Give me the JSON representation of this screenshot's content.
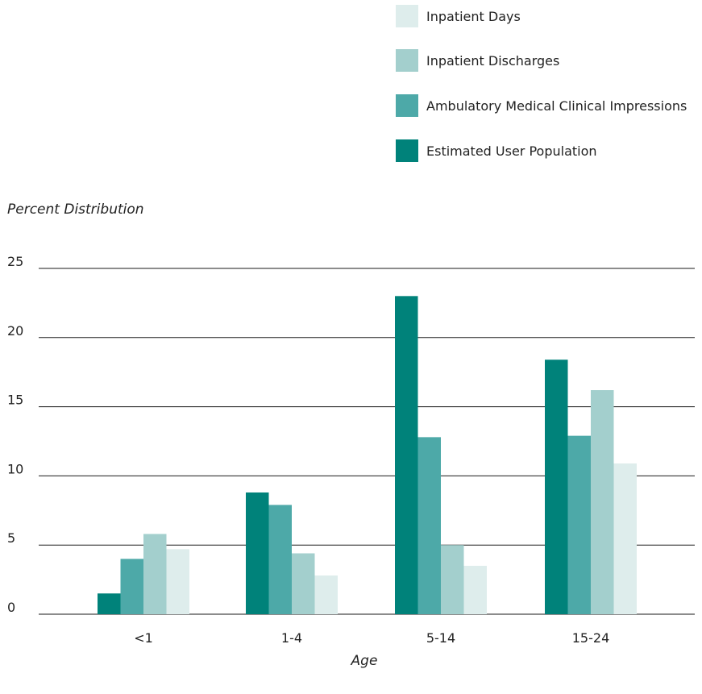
{
  "chart_data": {
    "type": "bar",
    "title": "",
    "ylabel": "Percent Distribution",
    "xlabel": "Age",
    "categories": [
      "<1",
      "1-4",
      "5-14",
      "15-24"
    ],
    "ylim": [
      0,
      25
    ],
    "yticks": [
      0,
      5,
      10,
      15,
      20,
      25
    ],
    "grid": true,
    "legend_position": "top-right",
    "series": [
      {
        "name": "Estimated User Population",
        "color": "#00827a",
        "values": [
          1.5,
          8.8,
          23.0,
          18.4
        ]
      },
      {
        "name": "Ambulatory Medical Clinical Impressions",
        "color": "#4da9a8",
        "values": [
          4.0,
          7.9,
          12.8,
          12.9
        ]
      },
      {
        "name": "Inpatient Discharges",
        "color": "#a3cfcd",
        "values": [
          5.8,
          4.4,
          5.0,
          16.2
        ]
      },
      {
        "name": "Inpatient Days",
        "color": "#deedec",
        "values": [
          4.7,
          2.8,
          3.5,
          10.9
        ]
      }
    ],
    "legend_order": [
      "Inpatient Days",
      "Inpatient Discharges",
      "Ambulatory Medical Clinical Impressions",
      "Estimated User Population"
    ]
  }
}
